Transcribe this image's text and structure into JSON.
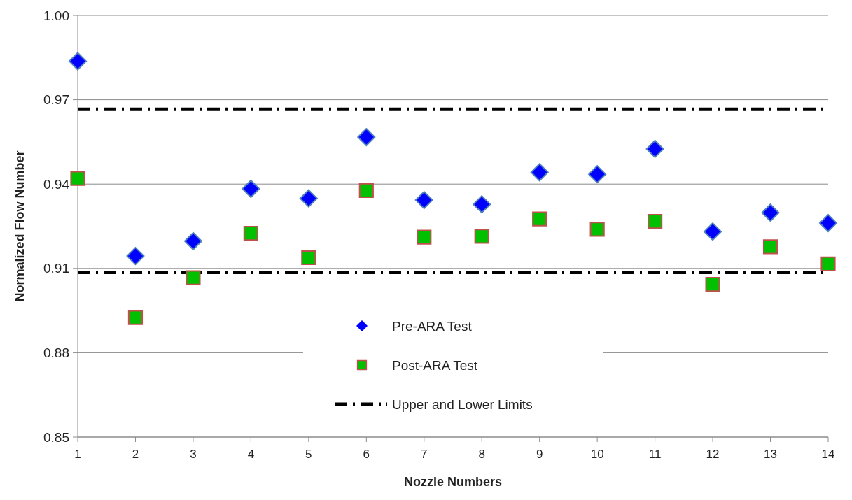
{
  "chart_data": {
    "type": "scatter",
    "xlabel": "Nozzle Numbers",
    "ylabel": "Normalized Flow Number",
    "x": [
      1,
      2,
      3,
      4,
      5,
      6,
      7,
      8,
      9,
      10,
      11,
      12,
      13,
      14
    ],
    "xlim": [
      1,
      14
    ],
    "xticks": [
      1,
      2,
      3,
      4,
      5,
      6,
      7,
      8,
      9,
      10,
      11,
      12,
      13,
      14
    ],
    "ylim": [
      0.85,
      1.0
    ],
    "yticks": [
      {
        "value": 0.85,
        "label": "0.85"
      },
      {
        "value": 0.88,
        "label": "0.88"
      },
      {
        "value": 0.91,
        "label": "0.91"
      },
      {
        "value": 0.94,
        "label": "0.94"
      },
      {
        "value": 0.97,
        "label": "0.97"
      },
      {
        "value": 1.0,
        "label": "1.00"
      }
    ],
    "grid": "y",
    "legend": "bottom",
    "series": [
      {
        "name": "Pre-ARA Test",
        "color": "#0000ff",
        "marker": "diamond",
        "values": [
          0.9837,
          0.9144,
          0.9197,
          0.9383,
          0.9349,
          0.9567,
          0.9343,
          0.9328,
          0.9442,
          0.9435,
          0.9525,
          0.9231,
          0.9298,
          0.9261
        ]
      },
      {
        "name": "Post-ARA Test",
        "color": "#00c000",
        "marker": "square",
        "values": [
          0.942,
          0.8925,
          0.9067,
          0.9225,
          0.9138,
          0.9377,
          0.9211,
          0.9214,
          0.9276,
          0.9239,
          0.9267,
          0.9043,
          0.9177,
          0.9116
        ]
      }
    ],
    "ref_lines": [
      {
        "axis": "y",
        "value": 0.9666,
        "label": "Upper and Lower Limits",
        "color": "#000000",
        "line_style": "dashed"
      },
      {
        "axis": "y",
        "value": 0.9086,
        "color": "#000000",
        "line_style": "dashed"
      }
    ]
  }
}
